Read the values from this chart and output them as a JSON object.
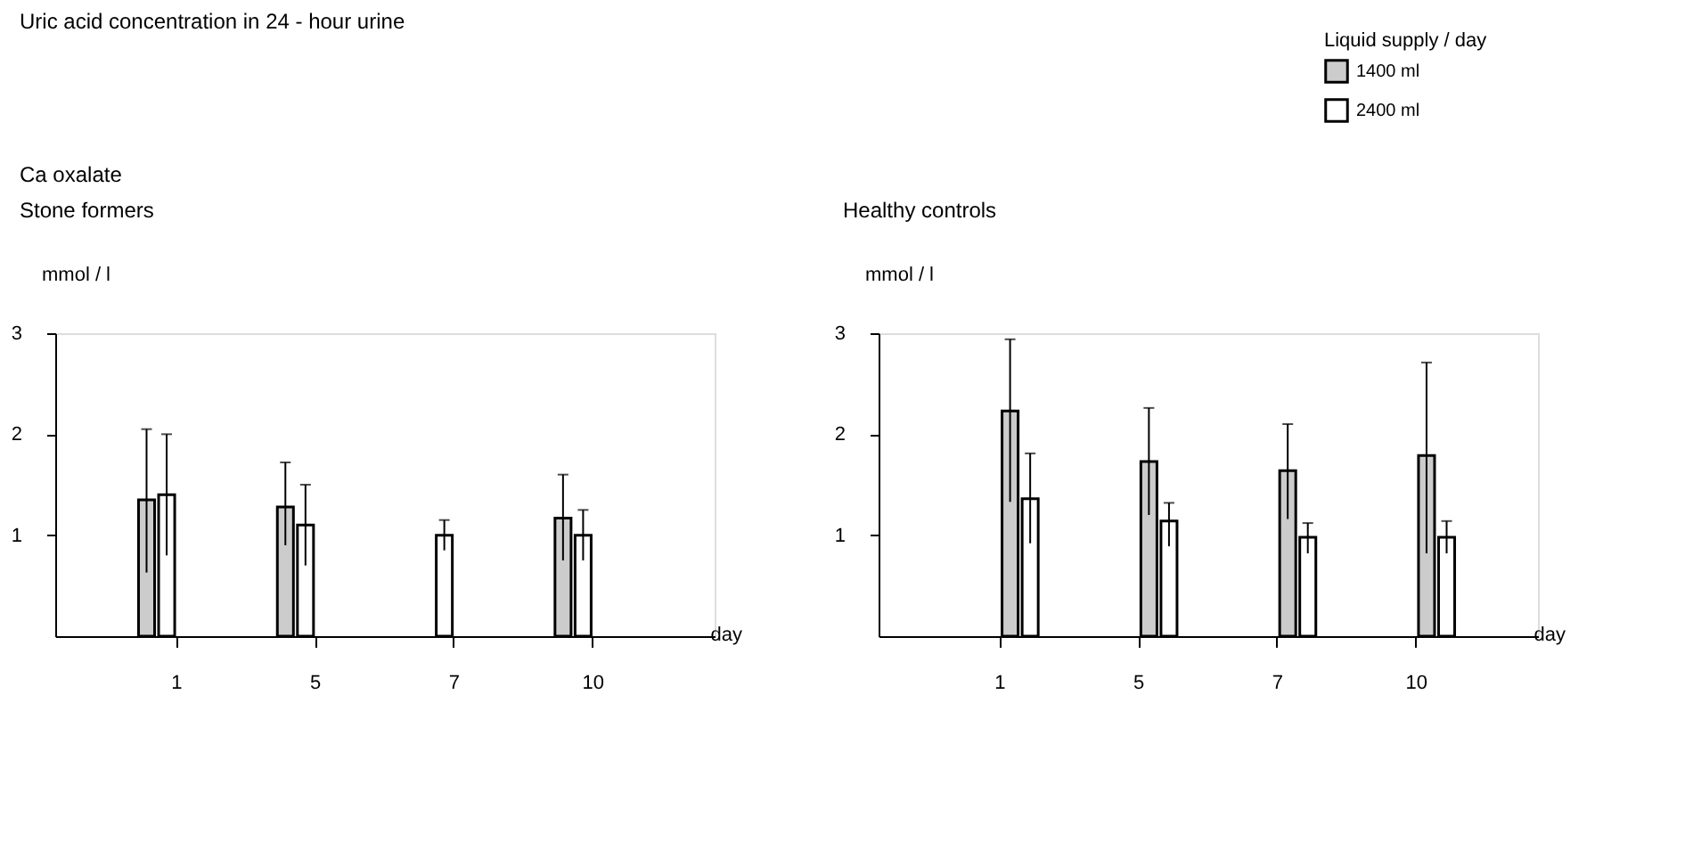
{
  "chart_data": [
    {
      "type": "bar",
      "title": "Uric acid concentration in 24 - hour urine",
      "subtitle": "Ca oxalate\nStone formers",
      "xlabel": "day",
      "ylabel": "mmol / l",
      "categories": [
        "1",
        "5",
        "7",
        "10"
      ],
      "ylim": [
        0,
        3
      ],
      "yticks": [
        1,
        2,
        3
      ],
      "grid": false,
      "series": [
        {
          "color": "#cccccc",
          "values": [
            1.35,
            1.28,
            null,
            1.17
          ],
          "errors": [
            [
              0.63,
              2.05
            ],
            [
              0.9,
              1.72
            ],
            null,
            [
              0.75,
              1.6
            ]
          ]
        },
        {
          "color": "#ffffff",
          "values": [
            1.4,
            1.1,
            1.0,
            1.0
          ],
          "errors": [
            [
              0.8,
              2.0
            ],
            [
              0.7,
              1.5
            ],
            [
              0.85,
              1.15
            ],
            [
              0.75,
              1.25
            ]
          ]
        }
      ]
    },
    {
      "type": "bar",
      "title": "Healthy controls",
      "xlabel": "day",
      "ylabel": "mmol / l",
      "legend_title": "Liquid supply / day",
      "legend": "top right",
      "categories": [
        "1",
        "5",
        "7",
        "10"
      ],
      "ylim": [
        0,
        3
      ],
      "yticks": [
        1,
        2,
        3
      ],
      "grid": false,
      "series": [
        {
          "name": "1400 ml",
          "color": "#cccccc",
          "values": [
            2.23,
            1.73,
            1.64,
            1.79
          ],
          "errors": [
            [
              1.33,
              2.94
            ],
            [
              1.2,
              2.26
            ],
            [
              1.16,
              2.1
            ],
            [
              0.82,
              2.71
            ]
          ]
        },
        {
          "name": "2400 ml",
          "color": "#ffffff",
          "values": [
            1.36,
            1.14,
            0.98,
            0.98
          ],
          "errors": [
            [
              0.92,
              1.81
            ],
            [
              0.89,
              1.32
            ],
            [
              0.82,
              1.12
            ],
            [
              0.82,
              1.14
            ]
          ]
        }
      ]
    }
  ]
}
